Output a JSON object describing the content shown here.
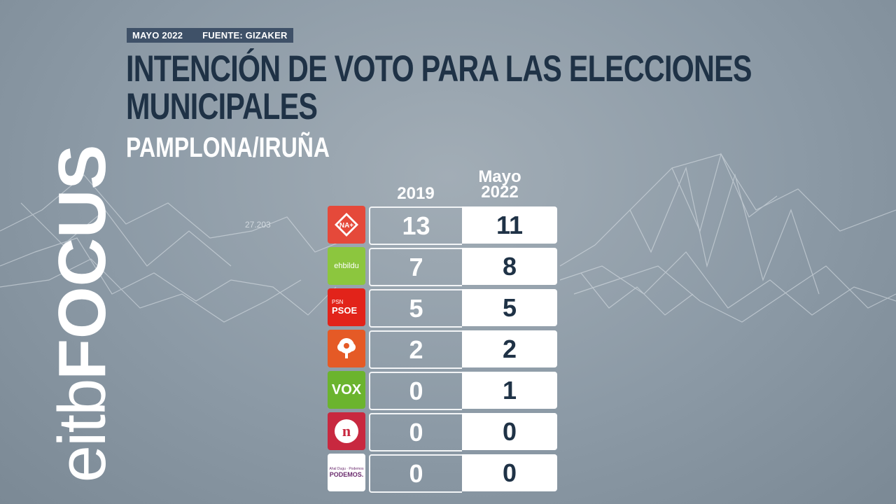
{
  "meta": {
    "date": "MAYO 2022",
    "source": "FUENTE: GIZAKER"
  },
  "title_line1": "INTENCIÓN DE VOTO PARA LAS ELECCIONES",
  "title_line2": "MUNICIPALES",
  "subtitle": "PAMPLONA/IRUÑA",
  "brand": {
    "part1": "eitb",
    "part2": "FOCUS"
  },
  "background_label": "27.203",
  "colors": {
    "title": "#1f3246",
    "meta_bg": "#3f5168",
    "nav": "#e5493a",
    "bildu": "#8cc63e",
    "psoe": "#e2231a",
    "geroa": "#e55a26",
    "vox": "#6bb42e",
    "navarra": "#c8283f",
    "podemos": "#ffffff"
  },
  "chart_data": {
    "type": "table",
    "title": "INTENCIÓN DE VOTO PARA LAS ELECCIONES MUNICIPALES",
    "subtitle": "PAMPLONA/IRUÑA",
    "columns": [
      "2019",
      "Mayo\n2022"
    ],
    "column_2019": "2019",
    "column_2022_line1": "Mayo",
    "column_2022_line2": "2022",
    "rows": [
      {
        "party_logo": "NA+",
        "v2019": 13,
        "v2022": 11
      },
      {
        "party_logo": "ehbildu",
        "v2019": 7,
        "v2022": 8
      },
      {
        "party_logo": "PSN PSOE",
        "v2019": 5,
        "v2022": 5
      },
      {
        "party_logo": "Geroa Bai",
        "v2019": 2,
        "v2022": 2
      },
      {
        "party_logo": "VOX",
        "v2019": 0,
        "v2022": 1
      },
      {
        "party_logo": "n",
        "v2019": 0,
        "v2022": 0
      },
      {
        "party_logo": "PODEMOS.",
        "v2019": 0,
        "v2022": 0
      }
    ]
  },
  "logos": {
    "nav_text": "NA+",
    "bildu_text": "ehbildu",
    "psoe_top": "PSN",
    "psoe_text": "PSOE",
    "vox_text": "VOX",
    "navarra_text": "n",
    "podemos_top": "Ahal Dugu · Podemos",
    "podemos_text": "PODEMOS."
  }
}
